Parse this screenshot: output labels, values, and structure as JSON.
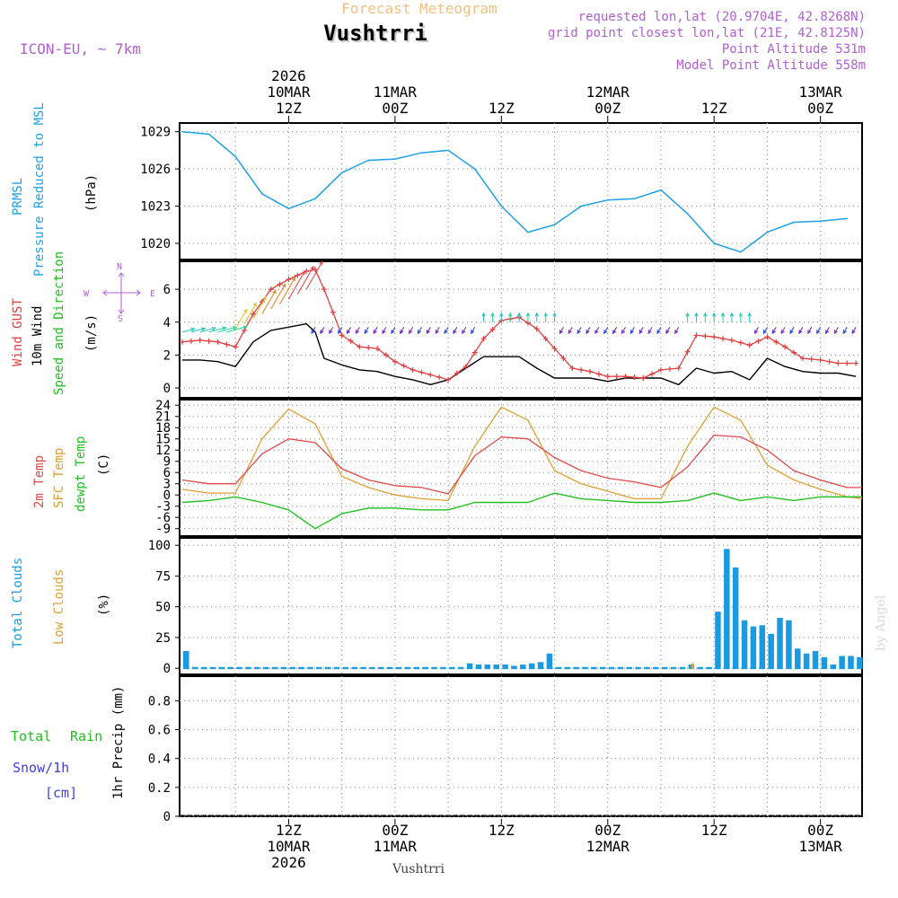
{
  "header": {
    "title": "Vushtrri",
    "subtitle": "Forecast Meteogram",
    "model": "ICON-EU, ~ 7km",
    "requested": "requested lon,lat (20.9704E, 42.8268N)",
    "grid_point": "grid point closest lon,lat (21E, 42.8125N)",
    "point_altitude": "Point Altitude 531m",
    "model_altitude": "Model Point Altitude 558m"
  },
  "footer": {
    "location": "Vushtrri",
    "watermark": "by Angel"
  },
  "time_axis": {
    "top": [
      {
        "h": 12,
        "lines": [
          "2026",
          "10MAR",
          "12Z"
        ]
      },
      {
        "h": 24,
        "lines": [
          "11MAR",
          "00Z"
        ]
      },
      {
        "h": 36,
        "lines": [
          "12Z"
        ]
      },
      {
        "h": 48,
        "lines": [
          "12MAR",
          "00Z"
        ]
      },
      {
        "h": 60,
        "lines": [
          "12Z"
        ]
      },
      {
        "h": 72,
        "lines": [
          "13MAR",
          "00Z"
        ]
      }
    ],
    "bottom": [
      {
        "h": 12,
        "lines": [
          "12Z",
          "10MAR",
          "2026"
        ]
      },
      {
        "h": 24,
        "lines": [
          "00Z",
          "11MAR"
        ]
      },
      {
        "h": 36,
        "lines": [
          "12Z"
        ]
      },
      {
        "h": 48,
        "lines": [
          "00Z",
          "12MAR"
        ]
      },
      {
        "h": 60,
        "lines": [
          "12Z"
        ]
      },
      {
        "h": 72,
        "lines": [
          "00Z",
          "13MAR"
        ]
      }
    ]
  },
  "panel_labels": {
    "pressure": [
      "PRMSL",
      "Pressure Reduced to MSL",
      "(hPa)"
    ],
    "wind": [
      "Wind GUST",
      "10m Wind",
      "Speed and Direction",
      "(m/s)"
    ],
    "compass": {
      "n": "N",
      "s": "S",
      "w": "W",
      "e": "E"
    },
    "temp": [
      "2m Temp",
      "SFC Temp",
      "dewpt Temp",
      "(C)"
    ],
    "clouds": [
      "Total Clouds",
      "Low Clouds",
      "(%)"
    ],
    "precip": [
      "Total",
      "Rain",
      "Snow/1h",
      "[cm]",
      "1hr Precip (mm)"
    ]
  },
  "colors": {
    "pressure": "#1ea0e6",
    "gust": "#e04040",
    "wind": "#000000",
    "t2m": "#e04848",
    "sfc": "#e0a030",
    "dewpt": "#20c020",
    "total_clouds": "#1a9ae0",
    "low_clouds": "#e0a030",
    "rain": "#20c020",
    "snow": "#4040e0",
    "purple": "#b060d0",
    "title_orange": "#f0c080"
  },
  "chart_data": [
    {
      "type": "line",
      "name": "pressure",
      "ylabel": "(hPa)",
      "yticks": [
        1020,
        1023,
        1026,
        1029
      ],
      "ylim": [
        1018.7,
        1029.7
      ],
      "grid": true,
      "x_hours": [
        0,
        3,
        6,
        9,
        12,
        15,
        18,
        21,
        24,
        27,
        30,
        33,
        36,
        39,
        42,
        45,
        48,
        51,
        54,
        57,
        60,
        63,
        66,
        69,
        72,
        75
      ],
      "values": [
        1029.0,
        1028.8,
        1027.0,
        1024.0,
        1022.8,
        1023.6,
        1025.7,
        1026.7,
        1026.8,
        1027.3,
        1027.5,
        1026.0,
        1023.0,
        1020.9,
        1021.5,
        1023.0,
        1023.5,
        1023.6,
        1024.3,
        1022.4,
        1020.0,
        1019.3,
        1020.9,
        1021.7,
        1021.8,
        1022.0
      ]
    },
    {
      "type": "line",
      "name": "wind",
      "ylabel": "(m/s)",
      "yticks": [
        0,
        2,
        4,
        6
      ],
      "ylim": [
        -0.6,
        7.7
      ],
      "grid": true,
      "x_hours": [
        0,
        2,
        4,
        6,
        8,
        10,
        12,
        14,
        15,
        16,
        18,
        20,
        22,
        24,
        26,
        28,
        30,
        32,
        34,
        36,
        38,
        40,
        42,
        44,
        46,
        48,
        50,
        52,
        54,
        56,
        58,
        60,
        62,
        64,
        66,
        68,
        70,
        72,
        74,
        76
      ],
      "gust": [
        2.8,
        2.9,
        2.8,
        2.5,
        4.5,
        6.0,
        6.6,
        7.1,
        7.2,
        6.0,
        3.2,
        2.5,
        2.4,
        1.6,
        1.1,
        0.8,
        0.5,
        1.3,
        3.0,
        4.1,
        4.3,
        3.6,
        2.4,
        1.2,
        1.0,
        0.7,
        0.7,
        0.6,
        1.1,
        1.2,
        3.2,
        3.1,
        2.9,
        2.6,
        3.1,
        2.5,
        1.8,
        1.7,
        1.5,
        1.5
      ],
      "speed": [
        1.7,
        1.7,
        1.6,
        1.3,
        2.8,
        3.5,
        3.7,
        3.9,
        3.4,
        1.8,
        1.4,
        1.1,
        1.0,
        0.7,
        0.5,
        0.2,
        0.5,
        1.2,
        1.9,
        1.9,
        1.9,
        1.2,
        0.6,
        0.6,
        0.6,
        0.4,
        0.6,
        0.6,
        0.6,
        0.2,
        1.2,
        0.9,
        1.0,
        0.5,
        1.8,
        1.3,
        1.0,
        0.9,
        0.9,
        0.7
      ]
    },
    {
      "type": "line",
      "name": "temperature",
      "ylabel": "(C)",
      "yticks": [
        -9,
        -6,
        -3,
        0,
        3,
        6,
        9,
        12,
        15,
        18,
        21,
        24
      ],
      "ylim": [
        -11,
        25.5
      ],
      "grid": true,
      "x_hours": [
        0,
        3,
        6,
        9,
        12,
        15,
        18,
        21,
        24,
        27,
        30,
        33,
        36,
        39,
        42,
        45,
        48,
        51,
        54,
        57,
        60,
        63,
        66,
        69,
        72,
        75,
        77
      ],
      "t2m": [
        4.0,
        3.0,
        3.0,
        11.0,
        15.0,
        14.0,
        7.0,
        4.0,
        2.5,
        2.0,
        0.3,
        10.5,
        15.5,
        15.0,
        10.0,
        6.5,
        4.5,
        3.5,
        2.0,
        7.5,
        16.0,
        15.5,
        12.0,
        6.5,
        4.0,
        2.0,
        2.0
      ],
      "sfc": [
        1.5,
        0.5,
        0.5,
        15.0,
        23.0,
        19.0,
        5.0,
        2.0,
        0.0,
        -1.0,
        -1.5,
        13.0,
        23.5,
        20.0,
        6.5,
        3.0,
        1.0,
        -1.0,
        -1.0,
        13.0,
        23.5,
        20.0,
        8.0,
        4.0,
        1.5,
        -0.5,
        -1.0
      ],
      "dewpt": [
        -2.0,
        -1.5,
        -0.5,
        -2.0,
        -4.0,
        -9.0,
        -5.0,
        -3.5,
        -3.5,
        -4.0,
        -4.0,
        -2.0,
        -2.0,
        -2.0,
        0.5,
        -1.0,
        -1.5,
        -2.0,
        -2.0,
        -1.5,
        0.5,
        -1.5,
        -0.5,
        -1.5,
        -0.5,
        -0.5,
        -0.5
      ]
    },
    {
      "type": "bar",
      "name": "clouds",
      "ylabel": "(%)",
      "yticks": [
        0,
        25,
        50,
        75,
        100
      ],
      "ylim": [
        -5,
        106
      ],
      "grid": true,
      "x_hours": [
        0,
        1,
        2,
        3,
        4,
        5,
        6,
        7,
        8,
        9,
        10,
        11,
        12,
        13,
        14,
        15,
        16,
        17,
        18,
        19,
        20,
        21,
        22,
        23,
        24,
        25,
        26,
        27,
        28,
        29,
        30,
        31,
        32,
        33,
        34,
        35,
        36,
        37,
        38,
        39,
        40,
        41,
        42,
        43,
        44,
        45,
        46,
        47,
        48,
        49,
        50,
        51,
        52,
        53,
        54,
        55,
        56,
        57,
        58,
        59,
        60,
        61,
        62,
        63,
        64,
        65,
        66,
        67,
        68,
        69,
        70,
        71,
        72,
        73,
        74,
        75,
        76
      ],
      "total": [
        14,
        1,
        1,
        1,
        1,
        1,
        1,
        1,
        1,
        1,
        1,
        1,
        1,
        1,
        1,
        1,
        1,
        1,
        1,
        1,
        1,
        1,
        1,
        1,
        1,
        1,
        1,
        1,
        1,
        1,
        1,
        1,
        4,
        3,
        3,
        3,
        3,
        2,
        3,
        4,
        5,
        12,
        1,
        1,
        1,
        1,
        1,
        1,
        1,
        1,
        1,
        1,
        1,
        1,
        1,
        1,
        1,
        3,
        1,
        1,
        46,
        97,
        82,
        39,
        34,
        35,
        28,
        41,
        39,
        16,
        12,
        14,
        9,
        3,
        10,
        10,
        9
      ],
      "low": [
        0,
        0,
        0,
        0,
        0,
        0,
        0,
        0,
        0,
        0,
        0,
        0,
        0,
        0,
        0,
        0,
        0,
        0,
        0,
        0,
        0,
        0,
        0,
        0,
        0,
        0,
        0,
        0,
        0,
        0,
        0,
        0,
        0,
        0,
        0,
        0,
        0,
        0,
        0,
        0,
        0,
        0,
        0,
        0,
        0,
        0,
        0,
        0,
        0,
        0,
        0,
        0,
        0,
        0,
        0,
        0,
        0,
        4,
        0,
        0,
        0,
        0,
        0,
        0,
        0,
        0,
        0,
        0,
        0,
        0,
        0,
        0,
        0,
        0,
        0,
        0,
        0
      ]
    },
    {
      "type": "bar",
      "name": "precipitation",
      "ylabel": "1hr Precip (mm)",
      "yticks": [
        0,
        0.2,
        0.4,
        0.6,
        0.8
      ],
      "ylim": [
        0,
        0.97
      ],
      "grid": true,
      "values": []
    }
  ]
}
